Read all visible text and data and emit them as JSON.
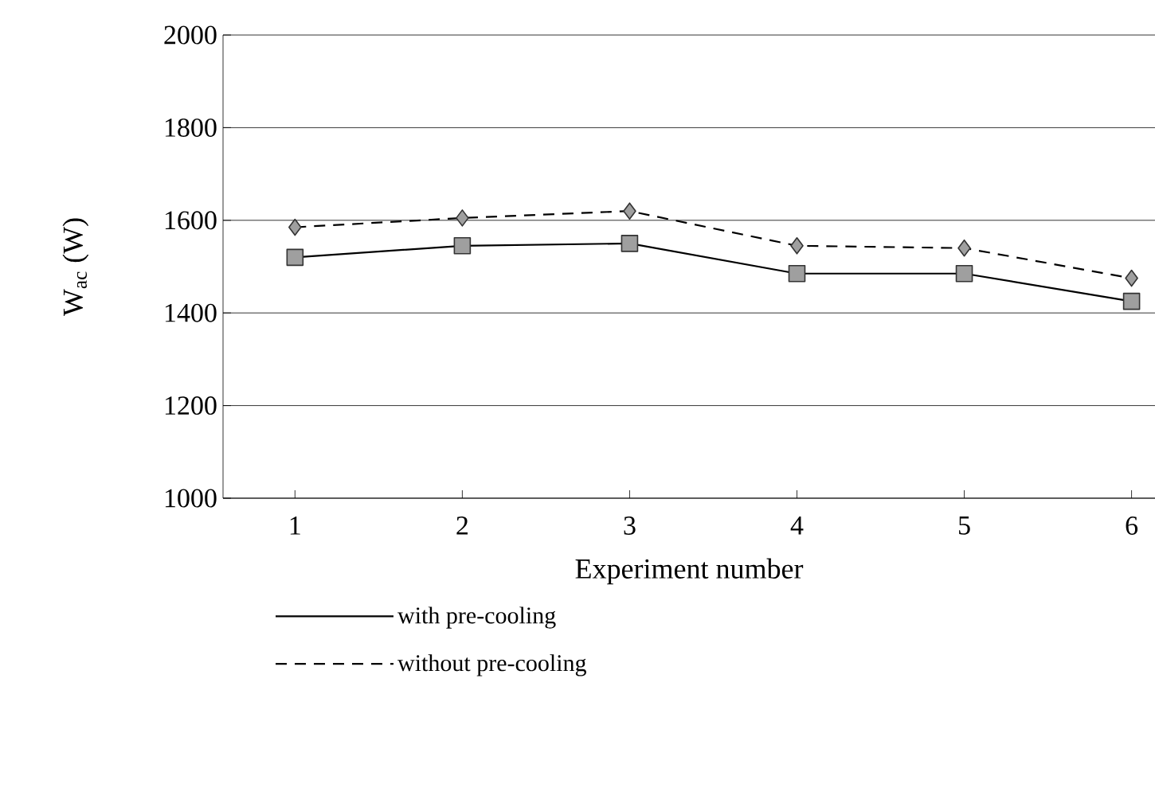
{
  "chart_data": {
    "type": "line",
    "xlabel": "Experiment number",
    "ylabel": "W$_{ac}$ (W)",
    "categories": [
      "1",
      "2",
      "3",
      "4",
      "5",
      "6"
    ],
    "series": [
      {
        "name": "with pre-cooling",
        "color": "#000000",
        "marker": "square",
        "line_style": "solid",
        "values": [
          1520,
          1545,
          1550,
          1485,
          1485,
          1425
        ]
      },
      {
        "name": "without pre-cooling",
        "color": "#000000",
        "marker": "diamond",
        "line_style": "dashed",
        "values": [
          1585,
          1605,
          1620,
          1545,
          1540,
          1475
        ]
      }
    ],
    "ylim": [
      1000,
      2000
    ],
    "yticks": [
      1000,
      1200,
      1400,
      1600,
      1800,
      2000
    ],
    "grid": "y",
    "legend": "bottom"
  }
}
